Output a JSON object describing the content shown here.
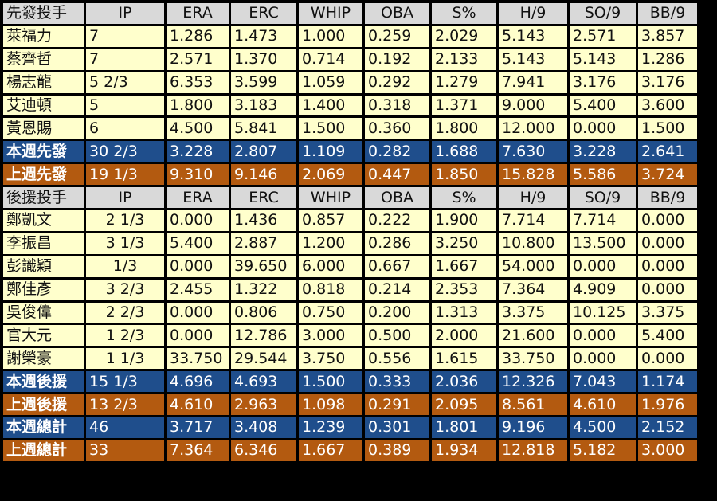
{
  "sections": [
    {
      "header": [
        "先發投手",
        "IP",
        "ERA",
        "ERC",
        "WHIP",
        "OBA",
        "S%",
        "H/9",
        "SO/9",
        "BB/9"
      ],
      "players": [
        [
          "萊福力",
          "7",
          "1.286",
          "1.473",
          "1.000",
          "0.259",
          "2.029",
          "5.143",
          "2.571",
          "3.857"
        ],
        [
          "蔡齊哲",
          "7",
          "2.571",
          "1.370",
          "0.714",
          "0.192",
          "2.133",
          "5.143",
          "5.143",
          "1.286"
        ],
        [
          "楊志龍",
          "5 2/3",
          "6.353",
          "3.599",
          "1.059",
          "0.292",
          "1.279",
          "7.941",
          "3.176",
          "3.176"
        ],
        [
          "艾迪頓",
          "5",
          "1.800",
          "3.183",
          "1.400",
          "0.318",
          "1.371",
          "9.000",
          "5.400",
          "3.600"
        ],
        [
          "黃恩賜",
          "6",
          "4.500",
          "5.841",
          "1.500",
          "0.360",
          "1.800",
          "12.000",
          "0.000",
          "1.500"
        ]
      ],
      "week": [
        "本週先發",
        "30 2/3",
        "3.228",
        "2.807",
        "1.109",
        "0.282",
        "1.688",
        "7.630",
        "3.228",
        "2.641"
      ],
      "prev": [
        "上週先發",
        "19 1/3",
        "9.310",
        "9.146",
        "2.069",
        "0.447",
        "1.850",
        "15.828",
        "5.586",
        "3.724"
      ]
    },
    {
      "header": [
        "後援投手",
        "IP",
        "ERA",
        "ERC",
        "WHIP",
        "OBA",
        "S%",
        "H/9",
        "SO/9",
        "BB/9"
      ],
      "players": [
        [
          "鄭凱文",
          "2 1/3",
          "0.000",
          "1.436",
          "0.857",
          "0.222",
          "1.900",
          "7.714",
          "7.714",
          "0.000"
        ],
        [
          "李振昌",
          "3 1/3",
          "5.400",
          "2.887",
          "1.200",
          "0.286",
          "3.250",
          "10.800",
          "13.500",
          "0.000"
        ],
        [
          "彭識穎",
          "1/3",
          "0.000",
          "39.650",
          "6.000",
          "0.667",
          "1.667",
          "54.000",
          "0.000",
          "0.000"
        ],
        [
          "鄭佳彥",
          "3 2/3",
          "2.455",
          "1.322",
          "0.818",
          "0.214",
          "2.353",
          "7.364",
          "4.909",
          "0.000"
        ],
        [
          "吳俊偉",
          "2 2/3",
          "0.000",
          "0.806",
          "0.750",
          "0.200",
          "1.313",
          "3.375",
          "10.125",
          "3.375"
        ],
        [
          "官大元",
          "1 2/3",
          "0.000",
          "12.786",
          "3.000",
          "0.500",
          "2.000",
          "21.600",
          "0.000",
          "5.400"
        ],
        [
          "謝榮豪",
          "1 1/3",
          "33.750",
          "29.544",
          "3.750",
          "0.556",
          "1.615",
          "33.750",
          "0.000",
          "0.000"
        ]
      ],
      "week": [
        "本週後援",
        "15 1/3",
        "4.696",
        "4.693",
        "1.500",
        "0.333",
        "2.036",
        "12.326",
        "7.043",
        "1.174"
      ],
      "prev": [
        "上週後援",
        "13 2/3",
        "4.610",
        "2.963",
        "1.098",
        "0.291",
        "2.095",
        "8.561",
        "4.610",
        "1.976"
      ]
    }
  ],
  "totals": {
    "week": [
      "本週總計",
      "46",
      "3.717",
      "3.408",
      "1.239",
      "0.301",
      "1.801",
      "9.196",
      "4.500",
      "2.152"
    ],
    "prev": [
      "上週總計",
      "33",
      "7.364",
      "6.346",
      "1.667",
      "0.389",
      "1.934",
      "12.818",
      "5.182",
      "3.000"
    ]
  },
  "colors": {
    "header_bg": "#d9d9d9",
    "player_bg": "#ffffcc",
    "this_week_bg": "#1f4e8c",
    "last_week_bg": "#b35a10",
    "border": "#000000"
  }
}
